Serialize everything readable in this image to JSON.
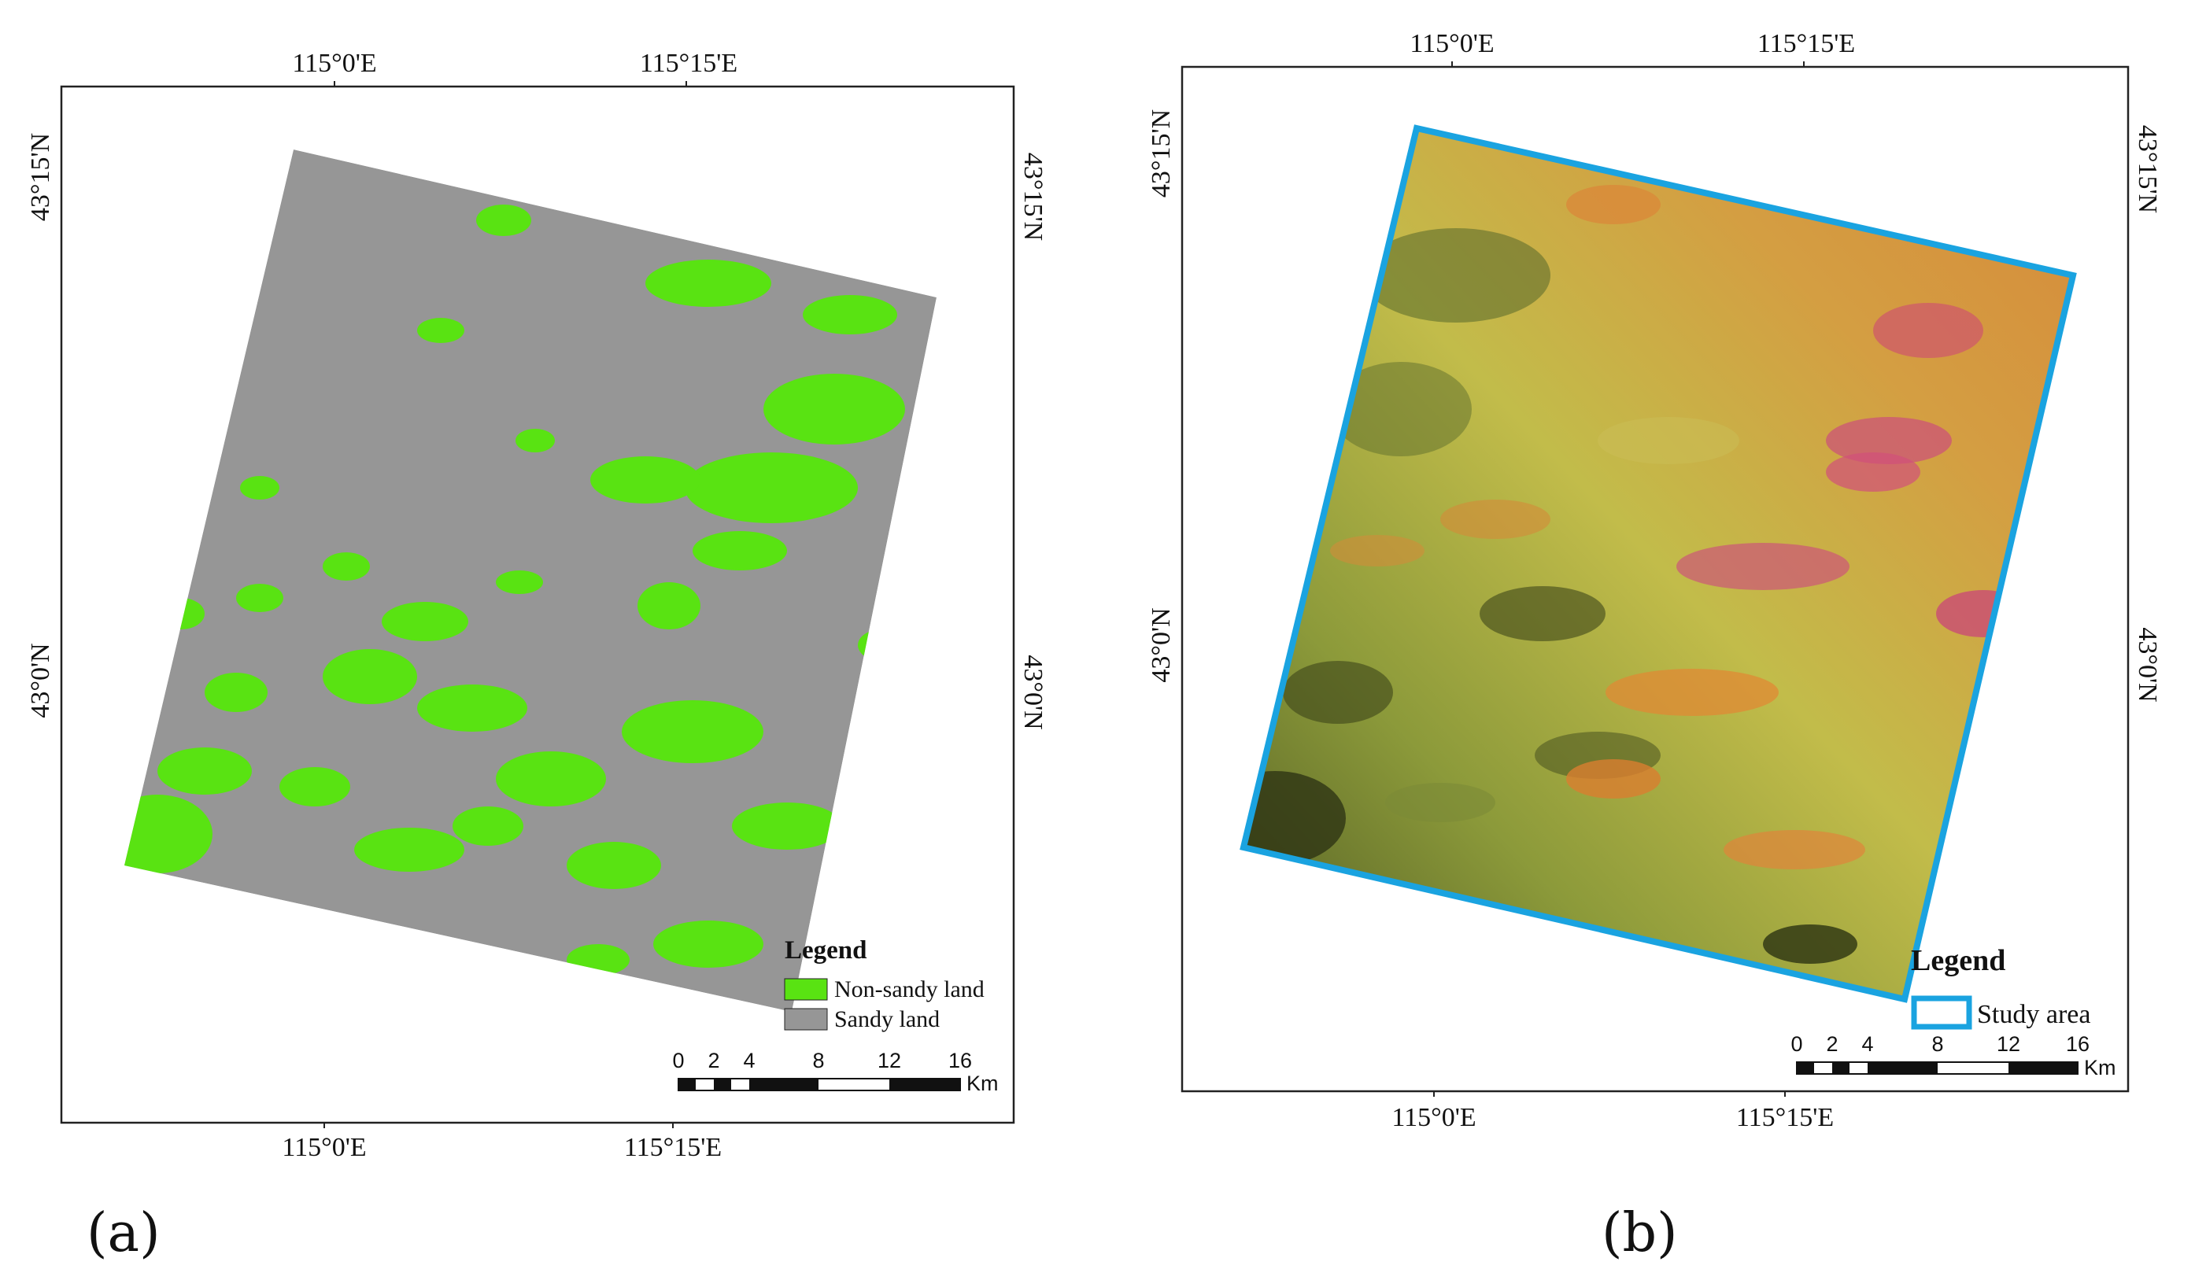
{
  "panels": [
    {
      "id": "a",
      "label": "(a)",
      "lon_labels": [
        "115°0'E",
        "115°15'E"
      ],
      "lat_labels": [
        "43°15'N",
        "43°0'N"
      ],
      "legend": {
        "title": "Legend",
        "items": [
          {
            "label": "Non-sandy land",
            "color": "#59e312"
          },
          {
            "label": "Sandy land",
            "color": "#969696"
          }
        ]
      },
      "scale_bar": {
        "ticks": [
          "0",
          "2",
          "4",
          "8",
          "12",
          "16"
        ],
        "unit": "Km"
      }
    },
    {
      "id": "b",
      "label": "(b)",
      "lon_labels": [
        "115°0'E",
        "115°15'E"
      ],
      "lat_labels": [
        "43°15'N",
        "43°0'N"
      ],
      "legend": {
        "title": "Legend",
        "items": [
          {
            "label": "Study area",
            "color": "#1aa3e0"
          }
        ]
      },
      "scale_bar": {
        "ticks": [
          "0",
          "2",
          "4",
          "8",
          "12",
          "16"
        ],
        "unit": "Km"
      }
    }
  ]
}
